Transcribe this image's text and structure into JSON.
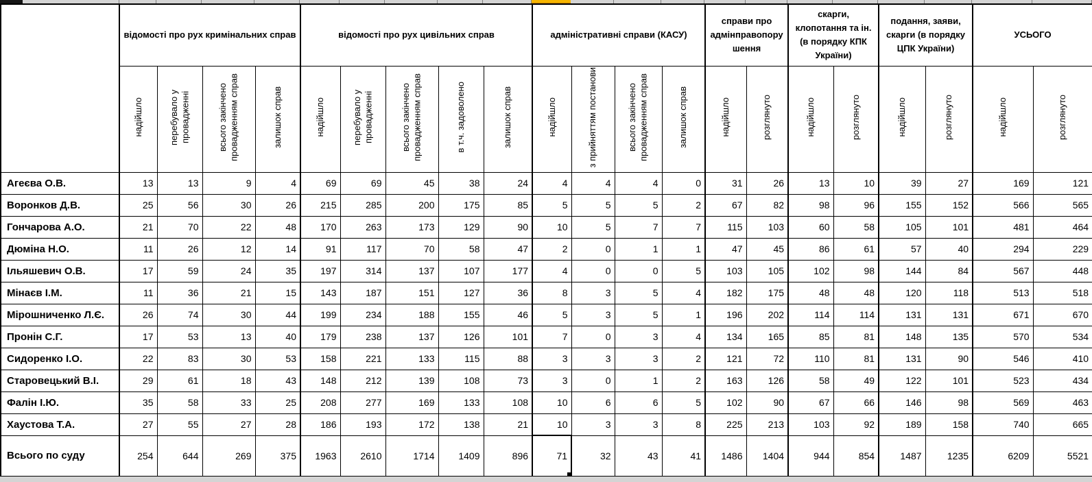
{
  "colors": {
    "selection_highlight": "#F5B400",
    "grid_line": "#000000",
    "header_strip_bg": "#D4D4D4",
    "header_strip_tick": "#7F7F7F"
  },
  "table": {
    "corner_label": "",
    "groups": [
      {
        "label": "відомості про рух кримінальних справ",
        "columns": [
          "надійшло",
          "перебувало у провадженні",
          "всього закінчено провадженням справ",
          "залишок справ"
        ]
      },
      {
        "label": "відомості про рух цивільних справ",
        "columns": [
          "надійшло",
          "перебувало у провадженні",
          "всього закінчено провадженням справ",
          "в т.ч. задоволено",
          "залишок справ"
        ]
      },
      {
        "label": "адміністративні справи (КАСУ)",
        "columns": [
          "надійшло",
          "з прийняттям постанови",
          "всього закінчено провадженням справ",
          "залишок справ"
        ]
      },
      {
        "label": "справи про адмінправопорушення",
        "columns": [
          "надійшло",
          "розглянуто"
        ]
      },
      {
        "label": "скарги, клопотання та ін. (в порядку КПК України)",
        "columns": [
          "надійшло",
          "розглянуто"
        ]
      },
      {
        "label": "подання, заяви, скарги (в порядку ЦПК України)",
        "columns": [
          "надійшло",
          "розглянуто"
        ]
      },
      {
        "label": "УСЬОГО",
        "columns": [
          "надійшло",
          "розглянуто"
        ]
      }
    ],
    "rows": [
      {
        "name": "Агеєва О.В.",
        "values": [
          13,
          13,
          9,
          4,
          69,
          69,
          45,
          38,
          24,
          4,
          4,
          4,
          0,
          31,
          26,
          13,
          10,
          39,
          27,
          169,
          121
        ]
      },
      {
        "name": "Воронков Д.В.",
        "values": [
          25,
          56,
          30,
          26,
          215,
          285,
          200,
          175,
          85,
          5,
          5,
          5,
          2,
          67,
          82,
          98,
          96,
          155,
          152,
          566,
          565
        ]
      },
      {
        "name": "Гончарова А.О.",
        "values": [
          21,
          70,
          22,
          48,
          170,
          263,
          173,
          129,
          90,
          10,
          5,
          7,
          7,
          115,
          103,
          60,
          58,
          105,
          101,
          481,
          464
        ]
      },
      {
        "name": "Дюміна Н.О.",
        "values": [
          11,
          26,
          12,
          14,
          91,
          117,
          70,
          58,
          47,
          2,
          0,
          1,
          1,
          47,
          45,
          86,
          61,
          57,
          40,
          294,
          229
        ]
      },
      {
        "name": "Ільяшевич О.В.",
        "values": [
          17,
          59,
          24,
          35,
          197,
          314,
          137,
          107,
          177,
          4,
          0,
          0,
          5,
          103,
          105,
          102,
          98,
          144,
          84,
          567,
          448
        ]
      },
      {
        "name": "Мінаєв І.М.",
        "values": [
          11,
          36,
          21,
          15,
          143,
          187,
          151,
          127,
          36,
          8,
          3,
          5,
          4,
          182,
          175,
          48,
          48,
          120,
          118,
          513,
          518
        ]
      },
      {
        "name": "Мірошниченко Л.Є.",
        "values": [
          26,
          74,
          30,
          44,
          199,
          234,
          188,
          155,
          46,
          5,
          3,
          5,
          1,
          196,
          202,
          114,
          114,
          131,
          131,
          671,
          670
        ]
      },
      {
        "name": "Пронін С.Г.",
        "values": [
          17,
          53,
          13,
          40,
          179,
          238,
          137,
          126,
          101,
          7,
          0,
          3,
          4,
          134,
          165,
          85,
          81,
          148,
          135,
          570,
          534
        ]
      },
      {
        "name": "Сидоренко І.О.",
        "values": [
          22,
          83,
          30,
          53,
          158,
          221,
          133,
          115,
          88,
          3,
          3,
          3,
          2,
          121,
          72,
          110,
          81,
          131,
          90,
          546,
          410
        ]
      },
      {
        "name": "Старовецький В.І.",
        "values": [
          29,
          61,
          18,
          43,
          148,
          212,
          139,
          108,
          73,
          3,
          0,
          1,
          2,
          163,
          126,
          58,
          49,
          122,
          101,
          523,
          434
        ]
      },
      {
        "name": "Фалін І.Ю.",
        "values": [
          35,
          58,
          33,
          25,
          208,
          277,
          169,
          133,
          108,
          10,
          6,
          6,
          5,
          102,
          90,
          67,
          66,
          146,
          98,
          569,
          463
        ]
      },
      {
        "name": "Хаустова Т.А.",
        "values": [
          27,
          55,
          27,
          28,
          186,
          193,
          172,
          138,
          21,
          10,
          3,
          3,
          8,
          225,
          213,
          103,
          92,
          189,
          158,
          740,
          665
        ]
      }
    ],
    "total": {
      "name": "Всього по суду",
      "values": [
        254,
        644,
        269,
        375,
        1963,
        2610,
        1714,
        1409,
        896,
        71,
        32,
        43,
        41,
        1486,
        1404,
        944,
        854,
        1487,
        1235,
        6209,
        5521
      ]
    },
    "selected_cell": {
      "row": "Всього по суду",
      "group": "адміністративні справи (КАСУ)",
      "column": "надійшло",
      "value": 71,
      "flat_index": 9
    }
  }
}
